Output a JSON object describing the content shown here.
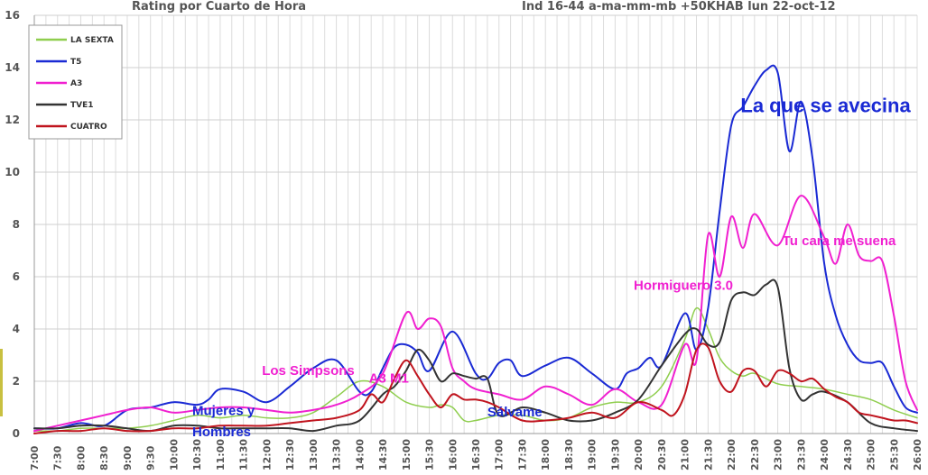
{
  "chart_data": {
    "type": "line",
    "title": "Rating por Cuarto de Hora",
    "subtitle": "Ind 16-44 a-ma-mm-mb +50KHAB  lun 22-oct-12",
    "ylim": [
      0,
      16
    ],
    "yticks": [
      0,
      2,
      4,
      6,
      8,
      10,
      12,
      14,
      16
    ],
    "categories": [
      "7:00",
      "7:30",
      "8:00",
      "8:30",
      "9:00",
      "9:30",
      "10:00",
      "10:30",
      "11:00",
      "11:30",
      "12:00",
      "12:30",
      "13:00",
      "13:30",
      "14:00",
      "14:30",
      "15:00",
      "15:30",
      "16:00",
      "16:30",
      "17:00",
      "17:30",
      "18:00",
      "18:30",
      "19:00",
      "19:30",
      "20:00",
      "20:30",
      "21:00",
      "21:30",
      "22:00",
      "22:30",
      "23:00",
      "23:30",
      "24:00",
      "24:30",
      "25:00",
      "25:30",
      "26:00"
    ],
    "series": [
      {
        "name": "LA SEXTA",
        "color": "#8fce4e",
        "width": 1.5,
        "x": [
          0,
          1,
          2,
          3,
          4,
          5,
          6,
          7,
          8,
          9,
          10,
          11,
          12,
          13,
          14,
          15,
          16,
          17,
          17.5,
          18,
          18.5,
          19,
          20,
          21,
          22,
          23,
          24,
          25,
          26,
          27,
          28,
          28.5,
          29,
          29.5,
          30,
          30.5,
          31,
          32,
          33,
          34,
          35,
          36,
          37,
          38
        ],
        "values": [
          0.1,
          0.1,
          0.2,
          0.2,
          0.2,
          0.3,
          0.5,
          0.7,
          0.6,
          0.7,
          0.6,
          0.6,
          0.8,
          1.4,
          2.0,
          1.8,
          1.2,
          1.0,
          1.1,
          1.0,
          0.5,
          0.5,
          0.7,
          0.7,
          0.5,
          0.6,
          1.0,
          1.2,
          1.2,
          1.8,
          3.6,
          4.8,
          4.0,
          2.9,
          2.4,
          2.2,
          2.3,
          1.9,
          1.8,
          1.7,
          1.5,
          1.3,
          0.9,
          0.6
        ]
      },
      {
        "name": "T5",
        "color": "#1a2ad4",
        "width": 2,
        "x": [
          0,
          1,
          2,
          3,
          4,
          5,
          6,
          7,
          7.5,
          8,
          9,
          10,
          11,
          12,
          13,
          14,
          14.5,
          15,
          15.5,
          16,
          16.5,
          17,
          18,
          19,
          19.5,
          20,
          20.5,
          21,
          22,
          23,
          24,
          25,
          25.5,
          26,
          26.5,
          27,
          28,
          28.5,
          29,
          29.5,
          30,
          30.5,
          31,
          31.5,
          32,
          32.5,
          33,
          33.5,
          34,
          34.5,
          35,
          35.5,
          36,
          36.5,
          37,
          37.5,
          38
        ],
        "values": [
          0.2,
          0.2,
          0.4,
          0.3,
          0.9,
          1.0,
          1.2,
          1.1,
          1.3,
          1.7,
          1.6,
          1.2,
          1.8,
          2.5,
          2.8,
          1.6,
          1.6,
          2.5,
          3.3,
          3.4,
          3.1,
          2.4,
          3.9,
          2.3,
          2.1,
          2.7,
          2.8,
          2.2,
          2.6,
          2.9,
          2.3,
          1.7,
          2.3,
          2.5,
          2.9,
          2.6,
          4.6,
          3.2,
          4.8,
          8.5,
          11.8,
          12.5,
          13.3,
          13.9,
          13.8,
          10.8,
          12.7,
          10.5,
          6.5,
          4.5,
          3.4,
          2.8,
          2.7,
          2.7,
          1.8,
          1.0,
          0.8
        ]
      },
      {
        "name": "A3",
        "color": "#f020d0",
        "width": 2,
        "x": [
          0,
          1,
          2,
          3,
          4,
          5,
          6,
          7,
          8,
          9,
          10,
          11,
          12,
          13,
          14,
          15,
          16,
          16.5,
          17,
          17.5,
          18,
          18.5,
          19,
          20,
          21,
          22,
          23,
          24,
          25,
          26,
          27,
          28,
          28.5,
          29,
          29.5,
          30,
          30.5,
          31,
          32,
          33,
          34,
          34.5,
          35,
          35.5,
          36,
          36.5,
          37,
          37.5,
          38
        ],
        "values": [
          0.1,
          0.3,
          0.5,
          0.7,
          0.9,
          1.0,
          0.8,
          0.9,
          1.0,
          1.0,
          0.9,
          0.8,
          0.9,
          1.1,
          1.5,
          2.3,
          4.6,
          4.0,
          4.4,
          4.1,
          2.5,
          2.0,
          1.7,
          1.5,
          1.3,
          1.8,
          1.5,
          1.1,
          1.7,
          1.2,
          1.1,
          3.4,
          2.8,
          7.6,
          6.0,
          8.3,
          7.1,
          8.4,
          7.2,
          9.1,
          7.5,
          6.5,
          8.0,
          6.8,
          6.6,
          6.6,
          4.5,
          2.0,
          0.9
        ]
      },
      {
        "name": "TVE1",
        "color": "#333333",
        "width": 2,
        "x": [
          0,
          1,
          2,
          3,
          4,
          5,
          6,
          7,
          8,
          9,
          10,
          11,
          12,
          13,
          14,
          15,
          15.5,
          16,
          16.5,
          17,
          17.5,
          18,
          18.5,
          19,
          19.5,
          20,
          21,
          22,
          23,
          24,
          25,
          26,
          27,
          28,
          28.5,
          29,
          29.5,
          30,
          30.5,
          31,
          31.5,
          32,
          32.5,
          33,
          33.5,
          34,
          35,
          36,
          37,
          38
        ],
        "values": [
          0.2,
          0.2,
          0.3,
          0.3,
          0.2,
          0.1,
          0.3,
          0.3,
          0.2,
          0.2,
          0.2,
          0.2,
          0.1,
          0.3,
          0.5,
          1.5,
          1.8,
          2.4,
          3.2,
          2.8,
          2.0,
          2.3,
          2.2,
          2.1,
          2.1,
          0.7,
          1.0,
          0.8,
          0.5,
          0.5,
          0.8,
          1.3,
          2.6,
          3.8,
          4.0,
          3.4,
          3.5,
          5.1,
          5.4,
          5.3,
          5.7,
          5.6,
          2.5,
          1.3,
          1.5,
          1.6,
          1.2,
          0.4,
          0.2,
          0.1
        ]
      },
      {
        "name": "CUATRO",
        "color": "#c0141e",
        "width": 2,
        "x": [
          0,
          1,
          2,
          3,
          4,
          5,
          6,
          7,
          8,
          9,
          10,
          11,
          12,
          13,
          14,
          14.5,
          15,
          15.5,
          16,
          16.5,
          17,
          17.5,
          18,
          18.5,
          19,
          19.5,
          20,
          21,
          22,
          23,
          24,
          25,
          26,
          27,
          27.5,
          28,
          28.5,
          29,
          29.5,
          30,
          30.5,
          31,
          31.5,
          32,
          32.5,
          33,
          33.5,
          34,
          34.5,
          35,
          35.5,
          36,
          36.5,
          37,
          37.5,
          38
        ],
        "values": [
          0.0,
          0.1,
          0.1,
          0.2,
          0.1,
          0.1,
          0.2,
          0.2,
          0.3,
          0.3,
          0.3,
          0.4,
          0.5,
          0.6,
          0.9,
          1.5,
          1.2,
          2.1,
          2.8,
          2.2,
          1.5,
          1.0,
          1.5,
          1.3,
          1.3,
          1.2,
          1.0,
          0.5,
          0.5,
          0.6,
          0.8,
          0.6,
          1.2,
          0.9,
          0.7,
          1.5,
          3.2,
          3.3,
          2.0,
          1.6,
          2.4,
          2.4,
          1.8,
          2.4,
          2.3,
          2.0,
          2.1,
          1.7,
          1.4,
          1.2,
          0.8,
          0.7,
          0.6,
          0.5,
          0.5,
          0.4
        ]
      }
    ],
    "annotations": [
      {
        "text": "La que se avecina",
        "color": "#1a2ad4",
        "x": 30.4,
        "y": 12.3,
        "size": 22
      },
      {
        "text": "Tu cara me suena",
        "color": "#f020d0",
        "x": 32.2,
        "y": 7.2,
        "size": 15
      },
      {
        "text": "Hormiguero 3.0",
        "color": "#f020d0",
        "x": 25.8,
        "y": 5.5,
        "size": 15
      },
      {
        "text": "Los Simpsons",
        "color": "#f020d0",
        "x": 9.8,
        "y": 2.25,
        "size": 15
      },
      {
        "text": "A3 M1",
        "color": "#f020d0",
        "x": 14.4,
        "y": 1.95,
        "size": 15
      },
      {
        "text": "Mujeres y",
        "color": "#1a2ad4",
        "x": 6.8,
        "y": 0.7,
        "size": 15
      },
      {
        "text": "Hombres",
        "color": "#1a2ad4",
        "x": 6.8,
        "y": -0.1,
        "size": 15
      },
      {
        "text": "Sálvame",
        "color": "#1a2ad4",
        "x": 19.5,
        "y": 0.65,
        "size": 15
      }
    ]
  }
}
